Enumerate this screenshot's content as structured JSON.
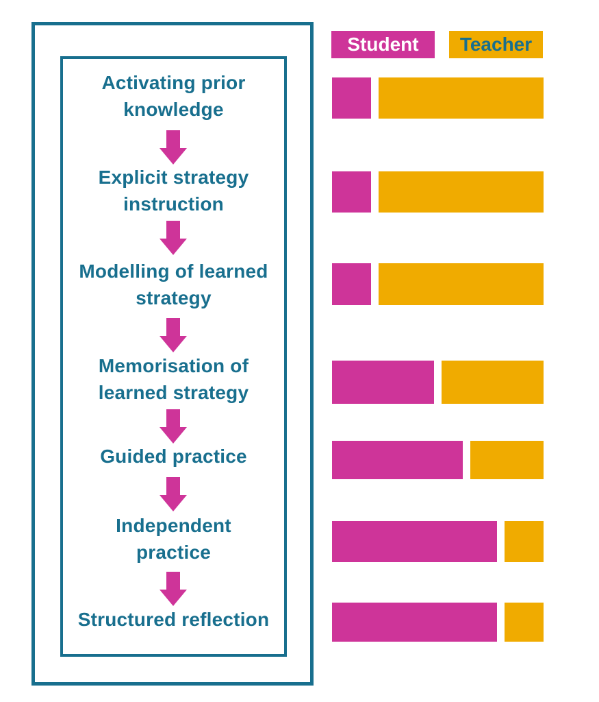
{
  "colors": {
    "teal": "#186F8E",
    "magenta": "#CE3499",
    "orange": "#F0AB00",
    "legend_student_text": "#FFFFFF"
  },
  "legend": {
    "student_label": "Student",
    "teacher_label": "Teacher"
  },
  "stages": [
    {
      "label": "Activating prior knowledge",
      "lines": [
        "Activating prior",
        "knowledge"
      ]
    },
    {
      "label": "Explicit strategy instruction",
      "lines": [
        "Explicit strategy",
        "instruction"
      ]
    },
    {
      "label": "Modelling of learned strategy",
      "lines": [
        "Modelling of learned",
        "strategy"
      ]
    },
    {
      "label": "Memorisation of learned strategy",
      "lines": [
        "Memorisation of",
        "learned strategy"
      ]
    },
    {
      "label": "Guided practice",
      "lines": [
        "Guided practice"
      ]
    },
    {
      "label": "Independent practice",
      "lines": [
        "Independent",
        "practice"
      ]
    },
    {
      "label": "Structured reflection",
      "lines": [
        "Structured reflection"
      ]
    }
  ],
  "chart_data": {
    "type": "bar",
    "orientation": "horizontal",
    "stacked": true,
    "categories": [
      "Activating prior knowledge",
      "Explicit strategy instruction",
      "Modelling of learned strategy",
      "Memorisation of learned strategy",
      "Guided practice",
      "Independent practice",
      "Structured reflection"
    ],
    "series": [
      {
        "name": "Student",
        "color": "#CE3499",
        "values": [
          19,
          19,
          19,
          50,
          64,
          81,
          81
        ]
      },
      {
        "name": "Teacher",
        "color": "#F0AB00",
        "values": [
          81,
          81,
          81,
          50,
          36,
          19,
          19
        ]
      }
    ],
    "value_unit": "percent of bar width (estimated)",
    "legend_position": "top",
    "axes_labeled": false,
    "grid": false
  }
}
